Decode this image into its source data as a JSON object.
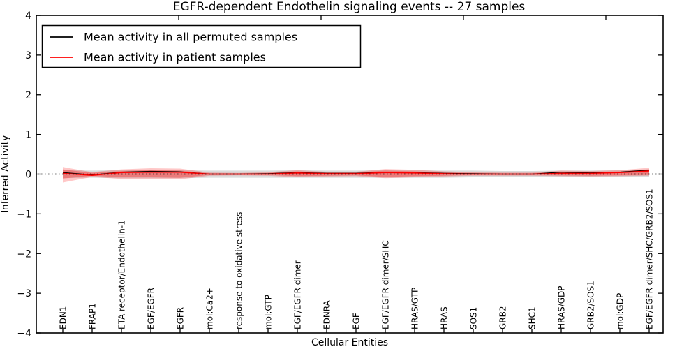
{
  "title": "EGFR-dependent Endothelin signaling events -- 27 samples",
  "legend": {
    "items": [
      {
        "label": "Mean activity in all permuted samples",
        "color": "#000000"
      },
      {
        "label": "Mean activity in patient samples",
        "color": "#ff0000"
      }
    ]
  },
  "colors": {
    "permuted_line": "#000000",
    "patient_line": "#ff0000",
    "patient_band": "#ff0000",
    "permuted_band": "#000000",
    "zero_line": "#000000",
    "background": "#ffffff"
  },
  "chart_data": {
    "type": "line",
    "title": "EGFR-dependent Endothelin signaling events -- 27 samples",
    "xlabel": "Cellular Entities",
    "ylabel": "Inferred Activity",
    "ylim": [
      -4,
      4
    ],
    "yticks": [
      4,
      3,
      2,
      1,
      0,
      -1,
      -2,
      -3,
      -4
    ],
    "grid": false,
    "legend_position": "upper left",
    "categories": [
      "EDN1",
      "FRAP1",
      "ETA receptor/Endothelin-1",
      "EGF/EGFR",
      "EGFR",
      "mol:Ca2+",
      "response to oxidative stress",
      "mol:GTP",
      "EGF/EGFR dimer",
      "EDNRA",
      "EGF",
      "EGF/EGFR dimer/SHC",
      "HRAS/GTP",
      "HRAS",
      "SOS1",
      "GRB2",
      "SHC1",
      "HRAS/GDP",
      "GRB2/SOS1",
      "mol:GDP",
      "EGF/EGFR dimer/SHC/GRB2/SOS1"
    ],
    "series": [
      {
        "name": "Mean activity in all permuted samples",
        "color": "#000000",
        "width": 1.3,
        "values": [
          0.04,
          -0.02,
          0.05,
          0.07,
          0.06,
          0.0,
          0.0,
          0.01,
          0.04,
          0.02,
          0.02,
          0.05,
          0.04,
          0.02,
          0.01,
          0.0,
          0.0,
          0.05,
          0.03,
          0.05,
          0.1
        ]
      },
      {
        "name": "Mean activity in patient samples",
        "color": "#ff0000",
        "width": 1.6,
        "values": [
          0.02,
          -0.03,
          0.04,
          0.05,
          0.05,
          0.0,
          0.0,
          0.0,
          0.03,
          0.01,
          0.01,
          0.04,
          0.03,
          0.01,
          0.0,
          0.0,
          0.0,
          0.02,
          0.02,
          0.04,
          0.08
        ]
      }
    ],
    "bands": [
      {
        "name": "permuted-std-band",
        "color": "#000000",
        "opacity": 0.14,
        "upper": [
          0.1,
          0.09,
          0.1,
          0.11,
          0.1,
          0.09,
          0.09,
          0.09,
          0.1,
          0.09,
          0.09,
          0.1,
          0.1,
          0.09,
          0.09,
          0.08,
          0.08,
          0.09,
          0.09,
          0.1,
          0.12
        ],
        "lower": [
          -0.1,
          -0.09,
          -0.1,
          -0.1,
          -0.1,
          -0.09,
          -0.09,
          -0.09,
          -0.09,
          -0.09,
          -0.09,
          -0.09,
          -0.09,
          -0.09,
          -0.08,
          -0.08,
          -0.08,
          -0.08,
          -0.08,
          -0.08,
          -0.08
        ]
      },
      {
        "name": "patient-std-outer-band",
        "color": "#ff0000",
        "opacity": 0.22,
        "upper": [
          0.18,
          0.05,
          0.12,
          0.15,
          0.14,
          0.04,
          0.03,
          0.05,
          0.1,
          0.06,
          0.06,
          0.13,
          0.11,
          0.07,
          0.05,
          0.04,
          0.04,
          0.09,
          0.08,
          0.1,
          0.16
        ],
        "lower": [
          -0.21,
          -0.07,
          -0.12,
          -0.12,
          -0.13,
          -0.04,
          -0.03,
          -0.04,
          -0.08,
          -0.06,
          -0.05,
          -0.1,
          -0.08,
          -0.06,
          -0.04,
          -0.04,
          -0.04,
          -0.05,
          -0.06,
          -0.05,
          -0.04
        ]
      },
      {
        "name": "patient-std-inner-band",
        "color": "#ff0000",
        "opacity": 0.28,
        "upper": [
          0.12,
          0.03,
          0.08,
          0.1,
          0.09,
          0.02,
          0.02,
          0.03,
          0.07,
          0.04,
          0.04,
          0.09,
          0.07,
          0.04,
          0.03,
          0.02,
          0.02,
          0.06,
          0.05,
          0.07,
          0.12
        ],
        "lower": [
          -0.11,
          -0.04,
          -0.08,
          -0.08,
          -0.09,
          -0.02,
          -0.02,
          -0.02,
          -0.05,
          -0.04,
          -0.03,
          -0.07,
          -0.05,
          -0.04,
          -0.02,
          -0.02,
          -0.02,
          -0.03,
          -0.04,
          -0.03,
          -0.02
        ]
      }
    ],
    "zero_line": {
      "y": 0,
      "style": "dotted",
      "color": "#000000"
    }
  }
}
